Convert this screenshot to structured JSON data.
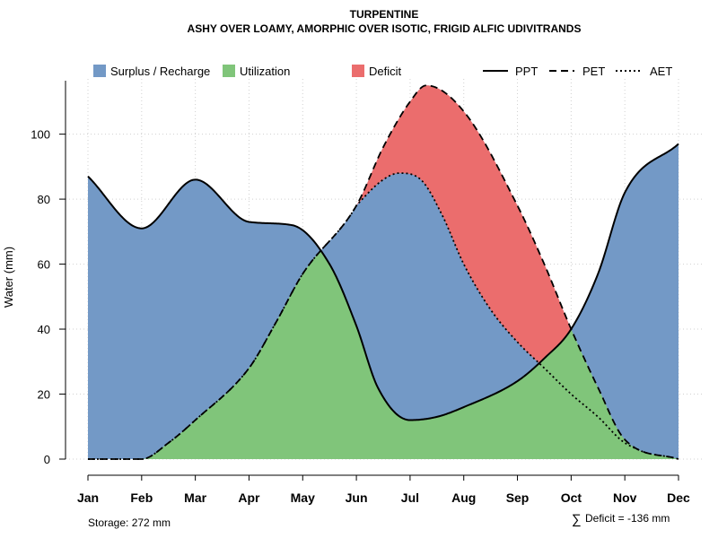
{
  "chart_data": {
    "type": "area",
    "title": "TURPENTINE",
    "subtitle": "ASHY OVER LOAMY, AMORPHIC OVER ISOTIC, FRIGID ALFIC UDIVITRANDS",
    "ylabel": "Water (mm)",
    "xlabel": "",
    "ylim": [
      0,
      117
    ],
    "yticks": [
      0,
      20,
      40,
      60,
      80,
      100
    ],
    "categories": [
      "Jan",
      "Feb",
      "Mar",
      "Apr",
      "May",
      "Jun",
      "Jul",
      "Aug",
      "Sep",
      "Oct",
      "Nov",
      "Dec"
    ],
    "grid": true,
    "legend": {
      "position": "top",
      "fills": [
        {
          "key": "surplus",
          "label": "Surplus / Recharge",
          "color": "#7399C6"
        },
        {
          "key": "utilization",
          "label": "Utilization",
          "color": "#80C57A"
        },
        {
          "key": "deficit",
          "label": "Deficit",
          "color": "#EB6D6D"
        }
      ],
      "lines": [
        {
          "key": "ppt",
          "label": "PPT",
          "dash": "solid"
        },
        {
          "key": "pet",
          "label": "PET",
          "dash": "dashed"
        },
        {
          "key": "aet",
          "label": "AET",
          "dash": "dotted"
        }
      ]
    },
    "series": [
      {
        "name": "PPT",
        "x": [
          1,
          2,
          3,
          4,
          4.8,
          5.5,
          6,
          6.4,
          7,
          7.5,
          8,
          9,
          9.5,
          10,
          10.5,
          11,
          12
        ],
        "values": [
          87,
          71,
          86,
          73,
          72,
          60,
          41,
          22,
          12,
          13,
          16,
          24,
          31,
          40,
          57,
          82,
          97
        ]
      },
      {
        "name": "PET",
        "x": [
          1,
          2,
          2.5,
          3,
          4,
          4.5,
          5,
          6,
          6.5,
          7,
          7.3,
          8,
          9,
          9.5,
          10,
          10.5,
          11,
          12
        ],
        "values": [
          0,
          0,
          5,
          12,
          28,
          42,
          57,
          78,
          96,
          110,
          115,
          107,
          78,
          60,
          40,
          22,
          6,
          0
        ]
      },
      {
        "name": "AET",
        "x": [
          1,
          2,
          2.5,
          3,
          4,
          4.5,
          5,
          5.5,
          6,
          6.5,
          6.8,
          7.2,
          7.6,
          8,
          8.5,
          9,
          9.5,
          10,
          10.5,
          11,
          12
        ],
        "values": [
          0,
          0,
          5,
          12,
          28,
          42,
          57,
          68,
          78,
          86,
          88,
          86,
          75,
          60,
          46,
          36,
          28,
          20,
          13,
          5,
          0
        ]
      }
    ]
  },
  "footer": {
    "storage": "Storage: 272 mm",
    "deficit_symbol": "∑",
    "deficit": "Deficit = -136 mm"
  }
}
